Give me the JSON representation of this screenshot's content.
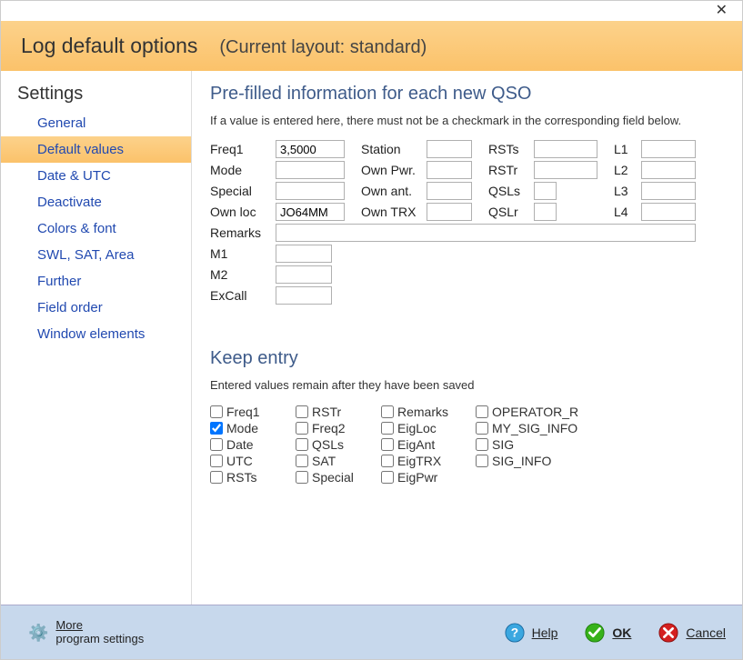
{
  "header": {
    "title": "Log default options",
    "sub": "(Current layout: standard)"
  },
  "sidebar": {
    "heading": "Settings",
    "items": [
      {
        "label": "General",
        "active": false
      },
      {
        "label": "Default values",
        "active": true
      },
      {
        "label": "Date & UTC",
        "active": false
      },
      {
        "label": "Deactivate",
        "active": false
      },
      {
        "label": "Colors & font",
        "active": false
      },
      {
        "label": "SWL, SAT, Area",
        "active": false
      },
      {
        "label": "Further",
        "active": false
      },
      {
        "label": "Field order",
        "active": false
      },
      {
        "label": "Window elements",
        "active": false
      }
    ]
  },
  "prefill": {
    "title": "Pre-filled information for each new QSO",
    "hint": "If a value is entered here, there must not be a checkmark in the corresponding field below.",
    "labels": {
      "freq1": "Freq1",
      "station": "Station",
      "rsts": "RSTs",
      "l1": "L1",
      "mode": "Mode",
      "ownpwr": "Own Pwr.",
      "rstr": "RSTr",
      "l2": "L2",
      "special": "Special",
      "ownant": "Own ant.",
      "qsls": "QSLs",
      "l3": "L3",
      "ownloc": "Own loc",
      "owntrx": "Own TRX",
      "qslr": "QSLr",
      "l4": "L4",
      "remarks": "Remarks",
      "m1": "M1",
      "m2": "M2",
      "excall": "ExCall"
    },
    "values": {
      "freq1": "3,5000",
      "station": "",
      "rsts": "",
      "l1": "",
      "mode": "",
      "ownpwr": "",
      "rstr": "",
      "l2": "",
      "special": "",
      "ownant": "",
      "qsls": "",
      "l3": "",
      "ownloc": "JO64MM",
      "owntrx": "",
      "qslr": "",
      "l4": "",
      "remarks": "",
      "m1": "",
      "m2": "",
      "excall": ""
    }
  },
  "keep": {
    "title": "Keep entry",
    "hint": "Entered values remain after they have been saved",
    "cols": [
      [
        {
          "label": "Freq1",
          "checked": false
        },
        {
          "label": "Mode",
          "checked": true
        },
        {
          "label": "Date",
          "checked": false
        },
        {
          "label": "UTC",
          "checked": false
        },
        {
          "label": "RSTs",
          "checked": false
        }
      ],
      [
        {
          "label": "RSTr",
          "checked": false
        },
        {
          "label": "Freq2",
          "checked": false
        },
        {
          "label": "QSLs",
          "checked": false
        },
        {
          "label": "SAT",
          "checked": false
        },
        {
          "label": "Special",
          "checked": false
        }
      ],
      [
        {
          "label": "Remarks",
          "checked": false
        },
        {
          "label": "EigLoc",
          "checked": false
        },
        {
          "label": "EigAnt",
          "checked": false
        },
        {
          "label": "EigTRX",
          "checked": false
        },
        {
          "label": "EigPwr",
          "checked": false
        }
      ],
      [
        {
          "label": "OPERATOR_R",
          "checked": false
        },
        {
          "label": "MY_SIG_INFO",
          "checked": false
        },
        {
          "label": "SIG",
          "checked": false
        },
        {
          "label": "SIG_INFO",
          "checked": false
        }
      ]
    ]
  },
  "footer": {
    "more_top": "More",
    "more_bottom": "program settings",
    "help": "Help",
    "ok": "OK",
    "cancel": "Cancel"
  },
  "colors": {
    "accent_bg": "#fbc26a",
    "link": "#2149b0",
    "section_title": "#3e5b8a",
    "footer_bg": "#c7d8ec"
  }
}
